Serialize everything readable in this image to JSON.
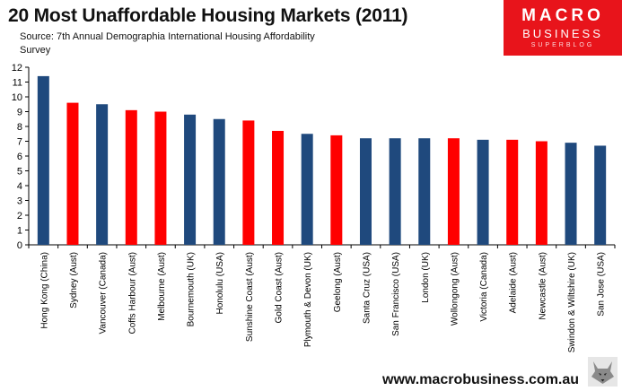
{
  "title": "20 Most Unaffordable Housing Markets (2011)",
  "source": "Source: 7th Annual Demographia International Housing Affordability Survey",
  "logo": {
    "line1": "MACRO",
    "line2": "BUSINESS",
    "line3": "SUPERBLOG"
  },
  "footer": {
    "url": "www.macrobusiness.com.au"
  },
  "colors": {
    "australia": "#ff0000",
    "other": "#1f497d"
  },
  "chart_data": {
    "type": "bar",
    "title": "20 Most Unaffordable Housing Markets (2011)",
    "xlabel": "",
    "ylabel": "",
    "ylim": [
      0,
      12
    ],
    "yticks": [
      "0",
      "1",
      "2",
      "3",
      "4",
      "5",
      "6",
      "7",
      "8",
      "9",
      "10",
      "11",
      "12"
    ],
    "grid": false,
    "categories": [
      "Hong Kong (China)",
      "Sydney (Aust)",
      "Vancouver (Canada)",
      "Coffs Harbour (Aust)",
      "Melbourne (Aust)",
      "Bournemouth (UK)",
      "Honolulu (USA)",
      "Sunshine Coast (Aust)",
      "Gold Coast (Aust)",
      "Plymouth & Devon (UK)",
      "Geelong (Aust)",
      "Santa Cruz (USA)",
      "San Francisco (USA)",
      "London (UK)",
      "Wollongong (Aust)",
      "Victoria (Canada)",
      "Adelaide (Aust)",
      "Newcastle (Aust)",
      "Swindon & Wiltshire (UK)",
      "San Jose (USA)"
    ],
    "values": [
      11.4,
      9.6,
      9.5,
      9.1,
      9.0,
      8.8,
      8.5,
      8.4,
      7.7,
      7.5,
      7.4,
      7.2,
      7.2,
      7.2,
      7.2,
      7.1,
      7.1,
      7.0,
      6.9,
      6.7
    ],
    "highlight": [
      false,
      true,
      false,
      true,
      true,
      false,
      false,
      true,
      true,
      false,
      true,
      false,
      false,
      false,
      true,
      false,
      true,
      true,
      false,
      false
    ]
  }
}
